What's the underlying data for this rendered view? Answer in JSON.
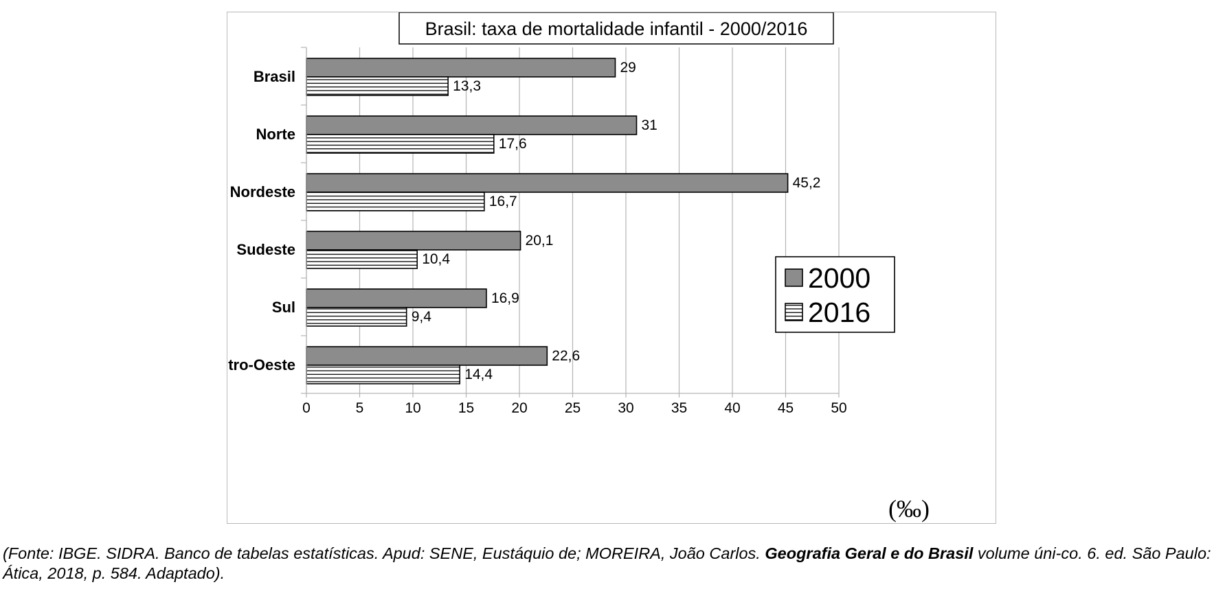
{
  "chart_data": {
    "type": "bar",
    "orientation": "horizontal",
    "title": "Brasil: taxa de mortalidade infantil - 2000/2016",
    "categories": [
      "Brasil",
      "Norte",
      "Nordeste",
      "Sudeste",
      "Sul",
      "Centro-Oeste"
    ],
    "series": [
      {
        "name": "2000",
        "values": [
          29,
          31,
          45.2,
          20.1,
          16.9,
          22.6
        ],
        "labels": [
          "29",
          "31",
          "45,2",
          "20,1",
          "16,9",
          "22,6"
        ],
        "fill": "#8c8c8c",
        "pattern": "solid"
      },
      {
        "name": "2016",
        "values": [
          13.3,
          17.6,
          16.7,
          10.4,
          9.4,
          14.4
        ],
        "labels": [
          "13,3",
          "17,6",
          "16,7",
          "10,4",
          "9,4",
          "14,4"
        ],
        "fill": "#ffffff",
        "pattern": "horizontal-stripes"
      }
    ],
    "xlim": [
      0,
      50
    ],
    "xticks": [
      0,
      5,
      10,
      15,
      20,
      25,
      30,
      35,
      40,
      45,
      50
    ],
    "xunit": "(‰)",
    "grid": "vertical",
    "legend_position": "right-middle"
  },
  "caption": {
    "pre": "(Fonte: IBGE. SIDRA. Banco de tabelas estatísticas. Apud: SENE, Eustáquio de; MOREIRA, João Carlos. ",
    "bold": "Geografia Geral e do Brasil",
    "post": " volume úni-co. 6. ed. São Paulo: Ática, 2018, p. 584. Adaptado)."
  }
}
